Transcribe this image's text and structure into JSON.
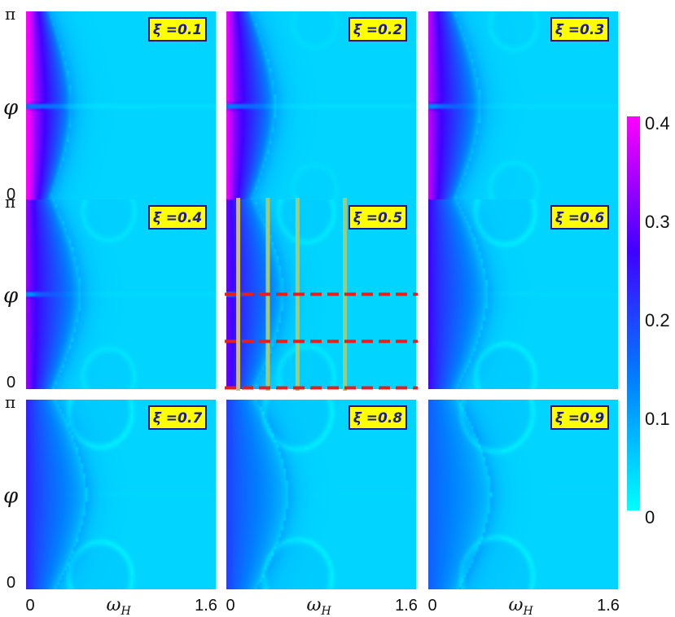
{
  "chart_data": {
    "type": "heatmap",
    "layout": "3x3 grid",
    "xlabel": "ω_H",
    "ylabel": "φ",
    "xlim": [
      0,
      1.6
    ],
    "ylim": [
      0,
      3.14159
    ],
    "x_ticks": [
      "0",
      "1.6"
    ],
    "y_ticks": [
      "0",
      "π"
    ],
    "panels": [
      {
        "label": "ξ =0.1",
        "xi": 0.1
      },
      {
        "label": "ξ =0.2",
        "xi": 0.2
      },
      {
        "label": "ξ =0.3",
        "xi": 0.3
      },
      {
        "label": "ξ =0.4",
        "xi": 0.4
      },
      {
        "label": "ξ =0.5",
        "xi": 0.5
      },
      {
        "label": "ξ =0.6",
        "xi": 0.6
      },
      {
        "label": "ξ =0.7",
        "xi": 0.7
      },
      {
        "label": "ξ =0.8",
        "xi": 0.8
      },
      {
        "label": "ξ =0.9",
        "xi": 0.9
      }
    ],
    "colorbar": {
      "min": 0,
      "max": 0.4,
      "ticks": [
        "0.4",
        "0.3",
        "0.2",
        "0.1",
        "0"
      ],
      "tick_values": [
        0.4,
        0.3,
        0.2,
        0.1,
        0
      ],
      "colors": [
        "#00ffff",
        "#0080ff",
        "#4000ff",
        "#ff00ff"
      ]
    },
    "annotations": {
      "panel": "ξ =0.5",
      "vertical_lines_omega": [
        0.1,
        0.35,
        0.6,
        1.0
      ],
      "vertical_line_colors": [
        "#c8b888",
        "#a8c870",
        "#a8c870",
        "#a8c870"
      ],
      "horizontal_dashed_phi": [
        1.57,
        0.79,
        0.02
      ],
      "dashed_color": "#e51e1e"
    }
  }
}
